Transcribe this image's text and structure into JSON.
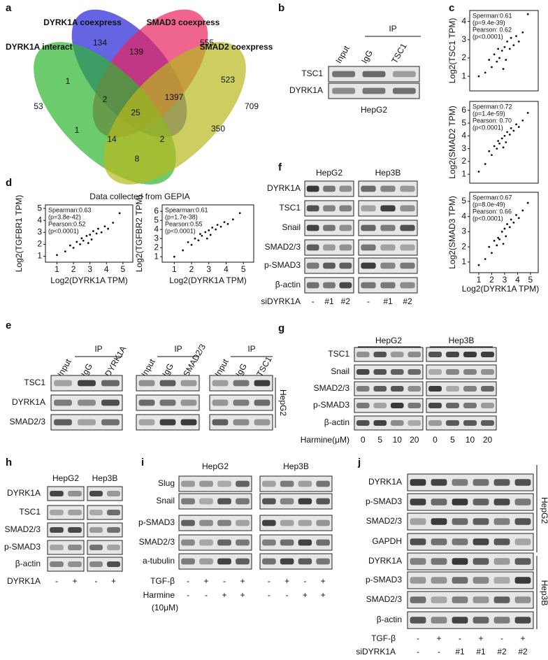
{
  "figure": {
    "a": {
      "label": "a",
      "sets": [
        {
          "name": "DYRK1A coexpress",
          "color": "#2424d8"
        },
        {
          "name": "SMAD3 coexpress",
          "color": "#e8245e"
        },
        {
          "name": "DYRK1A interact",
          "color": "#2db52d"
        },
        {
          "name": "SMAD2 coexpress",
          "color": "#b8b81c"
        }
      ],
      "regions": [
        134,
        555,
        139,
        1,
        523,
        53,
        2,
        1397,
        709,
        25,
        1,
        350,
        14,
        2,
        8
      ]
    },
    "b": {
      "label": "b",
      "ip": "IP",
      "lanes": [
        "Input",
        "IgG",
        "TSC1"
      ],
      "rows": [
        "TSC1",
        "DYRK1A"
      ],
      "cell": "HepG2"
    },
    "c": {
      "label": "c",
      "xlabel": "Log2(DYRK1A TPM)",
      "xticks": [
        1,
        2,
        3,
        4,
        5
      ],
      "xlim": [
        0.3,
        5.6
      ],
      "plots": [
        {
          "ylabel": "Log2(TSC1 TPM)",
          "stats": [
            "Sperman:0.61",
            "(p=9.4e-39)",
            "Pearson: 0.62",
            "(p<0.0001)"
          ],
          "ylim": [
            0.2,
            4.6
          ],
          "yticks": [
            1,
            2,
            3,
            4
          ],
          "x": [
            1.0,
            1.5,
            1.8,
            2.0,
            2.2,
            2.4,
            2.5,
            2.6,
            2.8,
            3.0,
            3.1,
            3.2,
            3.4,
            3.5,
            3.7,
            3.9,
            4.1,
            4.4,
            4.8,
            2.9
          ],
          "y": [
            1.0,
            1.2,
            1.9,
            1.5,
            2.2,
            1.8,
            2.5,
            2.0,
            2.4,
            2.6,
            1.9,
            2.9,
            2.5,
            3.1,
            2.7,
            3.2,
            2.9,
            3.4,
            4.4,
            1.4
          ]
        },
        {
          "ylabel": "Log2(SMAD2  TPM)",
          "stats": [
            "Sperman:0.72",
            "(p=1.4e-59)",
            "Pearson: 0.70",
            "(p<0.0001)"
          ],
          "ylim": [
            0.3,
            6.7
          ],
          "yticks": [
            1,
            2,
            3,
            4,
            5,
            6
          ],
          "x": [
            1.0,
            1.5,
            1.8,
            2.0,
            2.2,
            2.4,
            2.5,
            2.6,
            2.8,
            3.0,
            3.1,
            3.2,
            3.4,
            3.5,
            3.7,
            3.9,
            4.1,
            4.4,
            4.8,
            2.9
          ],
          "y": [
            1.2,
            1.8,
            2.8,
            2.5,
            3.2,
            3.0,
            3.6,
            3.4,
            3.8,
            4.0,
            3.5,
            4.3,
            4.1,
            4.6,
            4.4,
            4.9,
            4.7,
            5.2,
            5.8,
            3.1
          ]
        },
        {
          "ylabel": "Log2(SMAD3 TPM)",
          "stats": [
            "Sperman:0.67",
            "(p=8.0e-49)",
            "Pearson: 0.66",
            "(p<0.0001)"
          ],
          "ylim": [
            0.3,
            5.6
          ],
          "yticks": [
            1,
            2,
            3,
            4,
            5
          ],
          "x": [
            1.0,
            1.5,
            1.8,
            2.0,
            2.2,
            2.4,
            2.5,
            2.6,
            2.8,
            3.0,
            3.1,
            3.2,
            3.4,
            3.5,
            3.7,
            3.9,
            4.1,
            4.4,
            4.8,
            2.9
          ],
          "y": [
            0.8,
            1.2,
            2.0,
            1.6,
            2.4,
            2.1,
            2.6,
            2.5,
            3.0,
            3.2,
            2.7,
            3.5,
            3.3,
            3.8,
            3.6,
            4.1,
            3.9,
            4.4,
            4.9,
            2.2
          ]
        }
      ]
    },
    "d": {
      "label": "d",
      "title": "Data collected from GEPIA",
      "plots": [
        {
          "ylabel": "Log2(TGFBR1 TPM)",
          "xlabel": "Log2(DYRK1A TPM)",
          "stats": [
            "Spearman:0.63",
            "(p=3.8e-42)",
            "Pearson:0.52",
            "(p<0.0001)"
          ],
          "xlim": [
            0.3,
            5.6
          ],
          "ylim": [
            0.5,
            5.3
          ],
          "xticks": [
            1,
            2,
            3,
            4,
            5
          ],
          "yticks": [
            1,
            2,
            3,
            4,
            5
          ],
          "x": [
            1.0,
            1.5,
            1.8,
            2.0,
            2.2,
            2.4,
            2.5,
            2.6,
            2.8,
            3.0,
            3.1,
            3.2,
            3.4,
            3.5,
            3.7,
            3.9,
            4.1,
            4.4,
            4.8,
            2.9
          ],
          "y": [
            1.1,
            1.4,
            1.9,
            1.7,
            2.2,
            2.0,
            2.5,
            2.3,
            2.7,
            2.8,
            2.4,
            3.1,
            2.9,
            3.3,
            3.0,
            3.5,
            3.3,
            3.8,
            4.6,
            2.1
          ]
        },
        {
          "ylabel": "Log2(TGFBR2 TPM)",
          "xlabel": "Log2(DYRK1A TPM)",
          "stats": [
            "Spearman:0.61",
            "(p=1.7e-38)",
            "Pearson:0.55",
            "(p<0.0001)"
          ],
          "xlim": [
            0.3,
            5.6
          ],
          "ylim": [
            0.4,
            6.7
          ],
          "xticks": [
            1,
            2,
            3,
            4,
            5
          ],
          "yticks": [
            1,
            2,
            3,
            4,
            5,
            6
          ],
          "x": [
            1.0,
            1.5,
            1.8,
            2.0,
            2.2,
            2.4,
            2.5,
            2.6,
            2.8,
            3.0,
            3.1,
            3.2,
            3.4,
            3.5,
            3.7,
            3.9,
            4.1,
            4.4,
            4.8,
            2.9
          ],
          "y": [
            1.0,
            1.7,
            2.6,
            2.3,
            3.0,
            2.8,
            3.5,
            3.3,
            3.7,
            3.9,
            3.4,
            4.2,
            4.0,
            4.5,
            4.3,
            4.8,
            4.6,
            5.1,
            5.8,
            3.0
          ]
        }
      ]
    },
    "e": {
      "label": "e",
      "groups": [
        {
          "ip": "IP",
          "lanes": [
            "Input",
            "IgG",
            "DYRK1A"
          ]
        },
        {
          "ip": "IP",
          "lanes": [
            "Input",
            "IgG",
            "SMAD2/3"
          ]
        },
        {
          "ip": "IP",
          "lanes": [
            "Input",
            "IgG",
            "TSC1"
          ]
        }
      ],
      "rows": [
        "TSC1",
        "DYRK1A",
        "SMAD2/3"
      ],
      "cell": "HepG2"
    },
    "f": {
      "label": "f",
      "cells": [
        "HepG2",
        "Hep3B"
      ],
      "rows": [
        "DYRK1A",
        "TSC1",
        "Snail",
        "SMAD2/3",
        "p-SMAD3",
        "β-actin"
      ],
      "treatment": "siDYRK1A",
      "lanes": [
        "-",
        "#1",
        "#2",
        "-",
        "#1",
        "#2"
      ]
    },
    "g": {
      "label": "g",
      "cells": [
        "HepG2",
        "Hep3B"
      ],
      "rows": [
        "TSC1",
        "Snail",
        "SMAD2/3",
        "p-SMAD3",
        "β-actin"
      ],
      "treatment": "Harmine(μM)",
      "lanes": [
        0,
        5,
        10,
        20,
        0,
        5,
        10,
        20
      ]
    },
    "h": {
      "label": "h",
      "cells": [
        "HepG2",
        "Hep3B"
      ],
      "rows": [
        "DYRK1A",
        "TSC1",
        "SMAD2/3",
        "p-SMAD3",
        "β-actin"
      ],
      "treatment": "DYRK1A",
      "lanes": [
        "-",
        "+",
        "-",
        "+"
      ]
    },
    "i": {
      "label": "i",
      "cells": [
        "HepG2",
        "Hep3B"
      ],
      "rows": [
        "Slug",
        "Snail",
        "p-SMAD3",
        "SMAD2/3",
        "a-tubulin"
      ],
      "treatments": [
        {
          "name": "TGF-β",
          "lanes": [
            "-",
            "+",
            "-",
            "+",
            "-",
            "+",
            "-",
            "+"
          ]
        },
        {
          "name": "Harmine",
          "lanes": [
            "-",
            "-",
            "+",
            "+",
            "-",
            "-",
            "+",
            "+"
          ]
        }
      ],
      "dose": "(10μM)"
    },
    "j": {
      "label": "j",
      "cells": [
        "HepG2",
        "Hep3B"
      ],
      "rows": [
        "DYRK1A",
        "p-SMAD3",
        "SMAD2/3",
        "GAPDH",
        "DYRK1A",
        "p-SMAD3",
        "SMAD2/3",
        "β-actin"
      ],
      "treatments": [
        {
          "name": "TGF-β",
          "lanes": [
            "-",
            "+",
            "-",
            "+",
            "-",
            "+"
          ]
        },
        {
          "name": "siDYRK1A",
          "lanes": [
            "-",
            "-",
            "#1",
            "#1",
            "#2",
            "#2"
          ]
        }
      ]
    }
  }
}
